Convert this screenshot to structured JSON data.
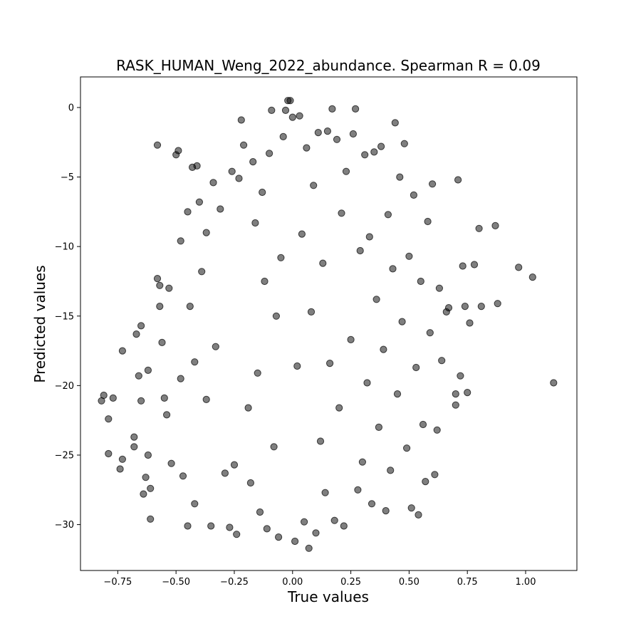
{
  "chart_data": {
    "type": "scatter",
    "title": "RASK_HUMAN_Weng_2022_abundance. Spearman R = 0.09",
    "xlabel": "True values",
    "ylabel": "Predicted values",
    "xlim": [
      -0.91,
      1.22
    ],
    "ylim": [
      -33.3,
      2.2
    ],
    "xticks": [
      -0.75,
      -0.5,
      -0.25,
      0.0,
      0.25,
      0.5,
      0.75,
      1.0
    ],
    "xtick_labels": [
      "−0.75",
      "−0.50",
      "−0.25",
      "0.00",
      "0.25",
      "0.50",
      "0.75",
      "1.00"
    ],
    "yticks": [
      0,
      -5,
      -10,
      -15,
      -20,
      -25,
      -30
    ],
    "ytick_labels": [
      "0",
      "−5",
      "−10",
      "−15",
      "−20",
      "−25",
      "−30"
    ],
    "grid": false,
    "legend": "none",
    "marker_color": "#000000",
    "marker_alpha": 0.5,
    "points": [
      [
        -0.82,
        -21.1
      ],
      [
        -0.81,
        -20.7
      ],
      [
        -0.79,
        -22.4
      ],
      [
        -0.79,
        -24.9
      ],
      [
        -0.77,
        -20.9
      ],
      [
        -0.74,
        -26.0
      ],
      [
        -0.73,
        -17.5
      ],
      [
        -0.73,
        -25.3
      ],
      [
        -0.68,
        -23.7
      ],
      [
        -0.68,
        -24.4
      ],
      [
        -0.67,
        -16.3
      ],
      [
        -0.66,
        -19.3
      ],
      [
        -0.65,
        -15.7
      ],
      [
        -0.65,
        -21.1
      ],
      [
        -0.64,
        -27.8
      ],
      [
        -0.63,
        -26.6
      ],
      [
        -0.62,
        -18.9
      ],
      [
        -0.62,
        -25.0
      ],
      [
        -0.61,
        -27.4
      ],
      [
        -0.61,
        -29.6
      ],
      [
        -0.58,
        -2.7
      ],
      [
        -0.58,
        -12.3
      ],
      [
        -0.57,
        -14.3
      ],
      [
        -0.57,
        -12.8
      ],
      [
        -0.56,
        -16.9
      ],
      [
        -0.55,
        -20.9
      ],
      [
        -0.54,
        -22.1
      ],
      [
        -0.53,
        -13.0
      ],
      [
        -0.52,
        -25.6
      ],
      [
        -0.5,
        -3.4
      ],
      [
        -0.49,
        -3.1
      ],
      [
        -0.48,
        -9.6
      ],
      [
        -0.48,
        -19.5
      ],
      [
        -0.47,
        -26.5
      ],
      [
        -0.45,
        -7.5
      ],
      [
        -0.45,
        -30.1
      ],
      [
        -0.44,
        -14.3
      ],
      [
        -0.43,
        -4.3
      ],
      [
        -0.42,
        -18.3
      ],
      [
        -0.42,
        -28.5
      ],
      [
        -0.41,
        -4.2
      ],
      [
        -0.4,
        -6.8
      ],
      [
        -0.39,
        -11.8
      ],
      [
        -0.37,
        -9.0
      ],
      [
        -0.37,
        -21.0
      ],
      [
        -0.35,
        -30.1
      ],
      [
        -0.34,
        -5.4
      ],
      [
        -0.33,
        -17.2
      ],
      [
        -0.31,
        -7.3
      ],
      [
        -0.29,
        -26.3
      ],
      [
        -0.27,
        -30.2
      ],
      [
        -0.26,
        -4.6
      ],
      [
        -0.25,
        -25.7
      ],
      [
        -0.24,
        -30.7
      ],
      [
        -0.23,
        -5.1
      ],
      [
        -0.22,
        -0.9
      ],
      [
        -0.21,
        -2.7
      ],
      [
        -0.19,
        -21.6
      ],
      [
        -0.18,
        -27.0
      ],
      [
        -0.17,
        -3.9
      ],
      [
        -0.16,
        -8.3
      ],
      [
        -0.15,
        -19.1
      ],
      [
        -0.14,
        -29.1
      ],
      [
        -0.13,
        -6.1
      ],
      [
        -0.12,
        -12.5
      ],
      [
        -0.11,
        -30.3
      ],
      [
        -0.1,
        -3.3
      ],
      [
        -0.09,
        -0.2
      ],
      [
        -0.08,
        -24.4
      ],
      [
        -0.07,
        -15.0
      ],
      [
        -0.06,
        -30.9
      ],
      [
        -0.05,
        -10.8
      ],
      [
        -0.04,
        -2.1
      ],
      [
        -0.03,
        -0.2
      ],
      [
        -0.02,
        0.5
      ],
      [
        -0.01,
        0.5
      ],
      [
        0.0,
        -0.7
      ],
      [
        0.01,
        -31.2
      ],
      [
        0.02,
        -18.6
      ],
      [
        0.03,
        -0.6
      ],
      [
        0.04,
        -9.1
      ],
      [
        0.05,
        -29.8
      ],
      [
        0.06,
        -2.9
      ],
      [
        0.07,
        -31.7
      ],
      [
        0.08,
        -14.7
      ],
      [
        0.09,
        -5.6
      ],
      [
        0.1,
        -30.6
      ],
      [
        0.11,
        -1.8
      ],
      [
        0.12,
        -24.0
      ],
      [
        0.13,
        -11.2
      ],
      [
        0.14,
        -27.7
      ],
      [
        0.15,
        -1.7
      ],
      [
        0.16,
        -18.4
      ],
      [
        0.17,
        -0.1
      ],
      [
        0.18,
        -29.7
      ],
      [
        0.19,
        -2.3
      ],
      [
        0.2,
        -21.6
      ],
      [
        0.21,
        -7.6
      ],
      [
        0.22,
        -30.1
      ],
      [
        0.23,
        -4.6
      ],
      [
        0.25,
        -16.7
      ],
      [
        0.26,
        -1.9
      ],
      [
        0.27,
        -0.1
      ],
      [
        0.28,
        -27.5
      ],
      [
        0.29,
        -10.3
      ],
      [
        0.3,
        -25.5
      ],
      [
        0.31,
        -3.4
      ],
      [
        0.32,
        -19.8
      ],
      [
        0.33,
        -9.3
      ],
      [
        0.34,
        -28.5
      ],
      [
        0.35,
        -3.2
      ],
      [
        0.36,
        -13.8
      ],
      [
        0.37,
        -23.0
      ],
      [
        0.38,
        -2.8
      ],
      [
        0.39,
        -17.4
      ],
      [
        0.4,
        -29.0
      ],
      [
        0.41,
        -7.7
      ],
      [
        0.42,
        -26.1
      ],
      [
        0.43,
        -11.6
      ],
      [
        0.44,
        -1.1
      ],
      [
        0.45,
        -20.6
      ],
      [
        0.46,
        -5.0
      ],
      [
        0.47,
        -15.4
      ],
      [
        0.48,
        -2.6
      ],
      [
        0.49,
        -24.5
      ],
      [
        0.5,
        -10.7
      ],
      [
        0.51,
        -28.8
      ],
      [
        0.52,
        -6.3
      ],
      [
        0.53,
        -18.7
      ],
      [
        0.54,
        -29.3
      ],
      [
        0.55,
        -12.5
      ],
      [
        0.56,
        -22.8
      ],
      [
        0.57,
        -26.9
      ],
      [
        0.58,
        -8.2
      ],
      [
        0.59,
        -16.2
      ],
      [
        0.6,
        -5.5
      ],
      [
        0.61,
        -26.4
      ],
      [
        0.62,
        -23.2
      ],
      [
        0.63,
        -13.0
      ],
      [
        0.64,
        -18.2
      ],
      [
        0.66,
        -14.7
      ],
      [
        0.67,
        -14.4
      ],
      [
        0.7,
        -20.6
      ],
      [
        0.7,
        -21.4
      ],
      [
        0.71,
        -5.2
      ],
      [
        0.72,
        -19.3
      ],
      [
        0.73,
        -11.4
      ],
      [
        0.74,
        -14.3
      ],
      [
        0.75,
        -20.5
      ],
      [
        0.76,
        -15.5
      ],
      [
        0.78,
        -11.3
      ],
      [
        0.8,
        -8.7
      ],
      [
        0.81,
        -14.3
      ],
      [
        0.87,
        -8.5
      ],
      [
        0.88,
        -14.1
      ],
      [
        0.97,
        -11.5
      ],
      [
        1.03,
        -12.2
      ],
      [
        1.12,
        -19.8
      ]
    ]
  }
}
